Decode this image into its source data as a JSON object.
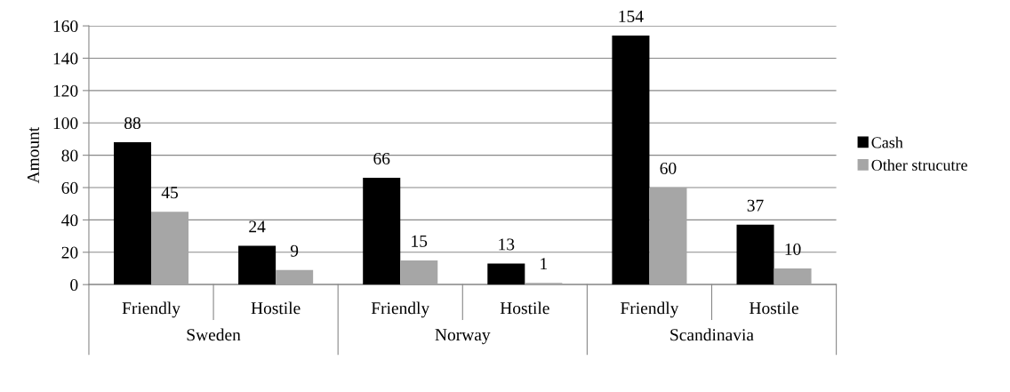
{
  "chart_data": {
    "type": "bar",
    "ylabel": "Amount",
    "categories": [
      "Friendly",
      "Hostile",
      "Friendly",
      "Hostile",
      "Friendly",
      "Hostile"
    ],
    "series": [
      {
        "name": "Cash",
        "color": "#000000",
        "values": [
          88,
          24,
          66,
          13,
          154,
          37
        ]
      },
      {
        "name": "Other strucutre",
        "color": "#a6a6a6",
        "values": [
          45,
          9,
          15,
          1,
          60,
          10
        ]
      }
    ],
    "annotations": [
      "Sweden",
      "Norway",
      "Scandinavia"
    ],
    "ylim": [
      0,
      160
    ],
    "yticks": [
      0,
      20,
      40,
      60,
      80,
      100,
      120,
      140,
      160
    ],
    "grid": "y",
    "legend": "right",
    "data_labels": true
  }
}
